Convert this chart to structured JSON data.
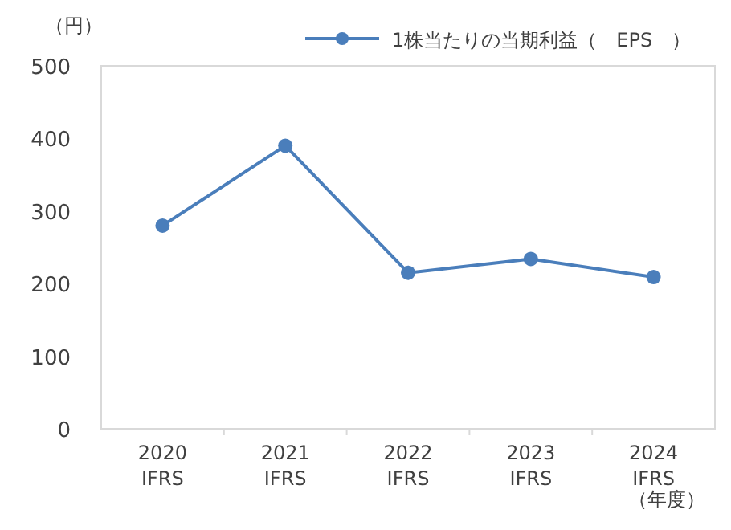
{
  "chart_data": {
    "type": "line",
    "ylabel": "（円）",
    "xlabel": "（年度）",
    "categories": [
      "2020\nIFRS",
      "2021\nIFRS",
      "2022\nIFRS",
      "2023\nIFRS",
      "2024\nIFRS"
    ],
    "series": [
      {
        "name": "1株当たりの当期利益（　EPS　）",
        "color": "#4a7ebb",
        "values": [
          280,
          390,
          215,
          234,
          209
        ]
      }
    ],
    "ylim": [
      0,
      500
    ],
    "yticks": [
      0,
      100,
      200,
      300,
      400,
      500
    ],
    "grid": false,
    "legend": "top right",
    "marker": "circle",
    "line_style": "solid"
  }
}
